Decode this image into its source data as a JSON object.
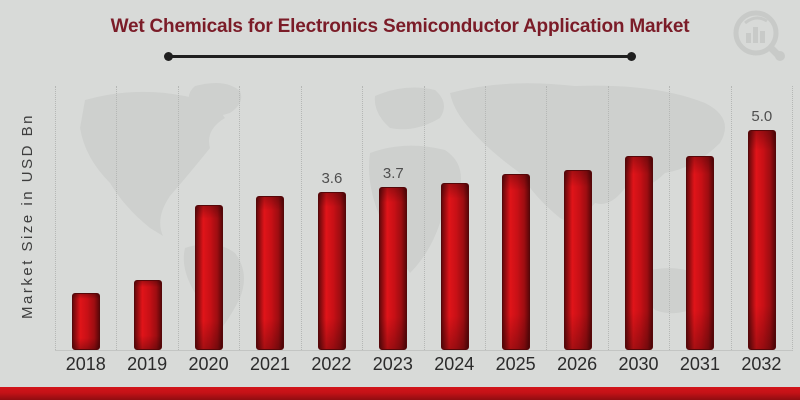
{
  "page": {
    "background_color": "#d8dad8",
    "accent_color": "#c41217"
  },
  "header": {
    "title": "Wet Chemicals for Electronics Semiconductor Application Market",
    "title_color": "#7b1c28",
    "underline_color": "#1f1f1f"
  },
  "watermarks": {
    "brand_logo_icon": "magnifier-bar-chart-logo",
    "background_image": "world-map-watermark"
  },
  "chart_data": {
    "type": "bar",
    "title": "Wet Chemicals for Electronics Semiconductor Application Market",
    "ylabel": "Market Size in USD Bn",
    "xlabel": "",
    "categories": [
      "2018",
      "2019",
      "2020",
      "2021",
      "2022",
      "2023",
      "2024",
      "2025",
      "2026",
      "2030",
      "2031",
      "2032"
    ],
    "values": [
      1.3,
      1.6,
      3.3,
      3.5,
      3.6,
      3.7,
      3.8,
      4.0,
      4.1,
      4.4,
      4.4,
      5.0
    ],
    "point_labels": [
      "",
      "",
      "",
      "",
      "3.6",
      "3.7",
      "",
      "",
      "",
      "",
      "",
      "5.0"
    ],
    "ylim": [
      0,
      6
    ],
    "grid": "vertical dotted",
    "legend_position": "none",
    "bar_color": "#c81016",
    "bar_edge_color": "#560709",
    "value_label_color": "#4f4f4f",
    "tick_label_color": "#2b2b2b"
  }
}
